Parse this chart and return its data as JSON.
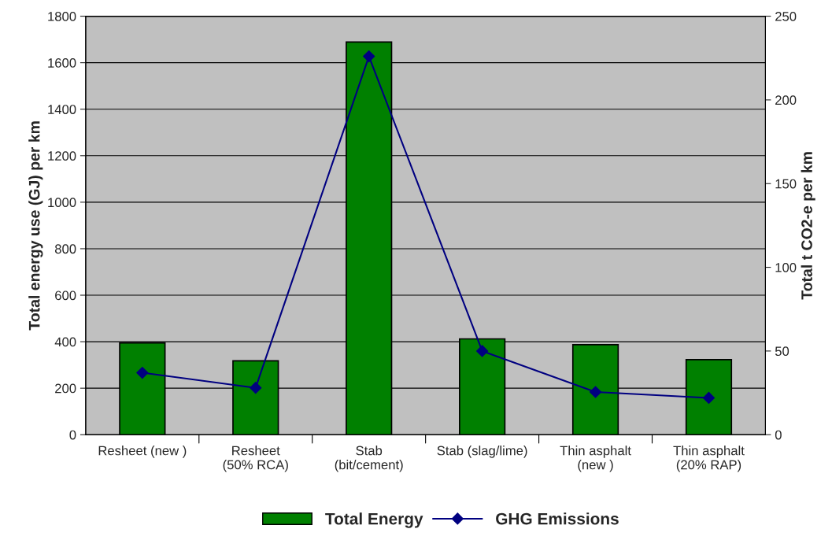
{
  "chart_data": {
    "type": "bar",
    "ylabel": "Total energy use (GJ) per km",
    "y2label": "Total t CO2-e per km",
    "categories": [
      "Resheet (new )",
      "Resheet\n(50% RCA)",
      "Stab\n(bit/cement)",
      "Stab (slag/lime)",
      "Thin asphalt\n(new )",
      "Thin asphalt\n(20% RAP)"
    ],
    "series": [
      {
        "name": "Total Energy",
        "color": "#008000",
        "values": [
          395,
          318,
          1689,
          412,
          387,
          323
        ]
      },
      {
        "name": "GHG Emissions",
        "type": "line",
        "axis": "y2",
        "color": "#000080",
        "marker": "diamond",
        "values": [
          37,
          28,
          226,
          50,
          25.5,
          22
        ]
      }
    ],
    "ylim": [
      0,
      1800
    ],
    "yticks": [
      0,
      200,
      400,
      600,
      800,
      1000,
      1200,
      1400,
      1600,
      1800
    ],
    "y2lim": [
      0,
      250
    ],
    "y2ticks": [
      0,
      50,
      100,
      150,
      200,
      250
    ],
    "grid": "y",
    "legend": "bottom"
  }
}
